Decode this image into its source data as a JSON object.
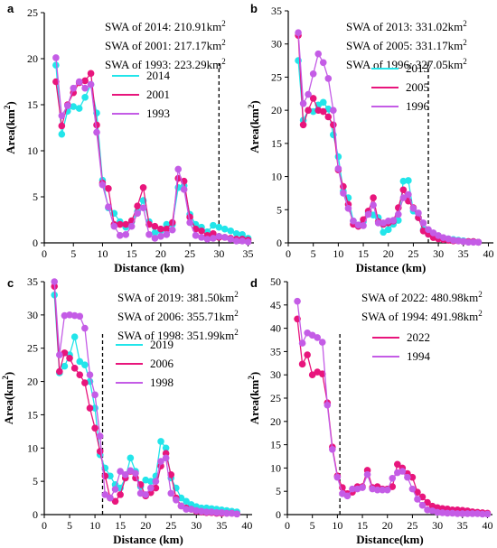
{
  "colors": {
    "c2014": "#22e5ea",
    "c2001": "#e8157c",
    "c1993": "#c45ce6"
  },
  "chart_data": [
    {
      "type": "line",
      "panel": "a",
      "xlabel": "Distance (km)",
      "ylabel": "Area(km",
      "ylabel_sup": "2",
      "ylabel_tail": ")",
      "xlim": [
        0,
        36
      ],
      "ylim": [
        0,
        25
      ],
      "xticks": [
        0,
        5,
        10,
        15,
        20,
        25,
        30,
        35
      ],
      "yticks": [
        0,
        5,
        10,
        15,
        20,
        25
      ],
      "cutoff_x": 30,
      "swa": [
        {
          "label": "SWA of 2014: 210.91km",
          "sup": "2"
        },
        {
          "label": "SWA of 2001: 217.17km",
          "sup": "2"
        },
        {
          "label": "SWA of 1993: 223.29km",
          "sup": "2"
        }
      ],
      "legend_pos": "upper-right",
      "series": [
        {
          "name": "2014",
          "colorKey": "c2014",
          "x": [
            2,
            3,
            4,
            5,
            6,
            7,
            8,
            9,
            10,
            11,
            12,
            13,
            14,
            15,
            16,
            17,
            18,
            19,
            20,
            21,
            22,
            23,
            24,
            25,
            26,
            27,
            28,
            29,
            30,
            31,
            32,
            33,
            34,
            35
          ],
          "values": [
            19.3,
            11.8,
            14.3,
            14.8,
            14.6,
            15.8,
            17.2,
            14.1,
            6.8,
            3.8,
            3.2,
            2.3,
            1.7,
            2.3,
            3.4,
            4.6,
            2.3,
            1.1,
            1.3,
            2.0,
            2.0,
            6.0,
            6.2,
            3.1,
            2.0,
            1.7,
            1.2,
            1.9,
            1.7,
            1.5,
            1.3,
            1.0,
            0.9,
            0.5
          ]
        },
        {
          "name": "2001",
          "colorKey": "c2001",
          "x": [
            2,
            3,
            4,
            5,
            6,
            7,
            8,
            9,
            10,
            11,
            12,
            13,
            14,
            15,
            16,
            17,
            18,
            19,
            20,
            21,
            22,
            23,
            24,
            25,
            26,
            27,
            28,
            29,
            30,
            31,
            32,
            33,
            34,
            35
          ],
          "values": [
            17.5,
            12.7,
            15.0,
            16.3,
            17.4,
            17.6,
            18.4,
            12.8,
            6.5,
            5.9,
            2.0,
            2.0,
            2.0,
            2.4,
            4.0,
            6.0,
            2.0,
            1.8,
            1.5,
            1.5,
            2.2,
            7.0,
            6.7,
            2.8,
            1.5,
            1.3,
            0.8,
            1.0,
            0.6,
            0.6,
            0.5,
            0.4,
            0.4,
            0.3
          ]
        },
        {
          "name": "1993",
          "colorKey": "c1993",
          "x": [
            2,
            3,
            4,
            5,
            6,
            7,
            8,
            9,
            10,
            11,
            12,
            13,
            14,
            15,
            16,
            17,
            18,
            19,
            20,
            21,
            22,
            23,
            24,
            25,
            26,
            27,
            28,
            29,
            30,
            31,
            32,
            33,
            34,
            35
          ],
          "values": [
            20.1,
            13.8,
            14.9,
            16.8,
            17.5,
            16.8,
            17.2,
            12.0,
            6.3,
            3.9,
            1.8,
            0.8,
            0.9,
            1.8,
            3.2,
            3.8,
            0.9,
            0.5,
            0.7,
            0.9,
            1.4,
            8.0,
            5.8,
            2.2,
            0.8,
            0.6,
            0.4,
            0.5,
            0.7,
            0.6,
            0.4,
            0.2,
            0.2,
            0.1
          ]
        }
      ]
    },
    {
      "type": "line",
      "panel": "b",
      "xlabel": "Distance (km)",
      "ylabel": "Area(km",
      "ylabel_sup": "2",
      "ylabel_tail": ")",
      "xlim": [
        0,
        41
      ],
      "ylim": [
        0,
        35
      ],
      "xticks": [
        0,
        5,
        10,
        15,
        20,
        25,
        30,
        35,
        40
      ],
      "yticks": [
        0,
        5,
        10,
        15,
        20,
        25,
        30,
        35
      ],
      "cutoff_x": 28,
      "swa": [
        {
          "label": "SWA of 2013: 331.02km",
          "sup": "2"
        },
        {
          "label": "SWA of 2005: 331.17km",
          "sup": "2"
        },
        {
          "label": "SWA of 1996: 327.05km",
          "sup": "2"
        }
      ],
      "legend_pos": "upper-right",
      "series": [
        {
          "name": "2013",
          "colorKey": "c2013",
          "x": [
            2,
            3,
            4,
            5,
            6,
            7,
            8,
            9,
            10,
            11,
            12,
            13,
            14,
            15,
            16,
            17,
            18,
            19,
            20,
            21,
            22,
            23,
            24,
            25,
            26,
            27,
            28,
            29,
            30,
            31,
            32,
            33,
            34,
            35,
            36,
            37,
            38
          ],
          "values": [
            27.5,
            18.5,
            20.0,
            19.8,
            20.8,
            21.2,
            20.2,
            16.3,
            13.0,
            7.8,
            6.8,
            3.3,
            2.6,
            3.2,
            4.6,
            4.2,
            3.8,
            1.6,
            2.0,
            2.8,
            3.4,
            9.3,
            9.4,
            4.8,
            3.8,
            2.0,
            1.3,
            1.0,
            0.8,
            0.7,
            0.6,
            0.5,
            0.4,
            0.3,
            0.2,
            0.2,
            0.1
          ]
        },
        {
          "name": "2005",
          "colorKey": "c2005",
          "x": [
            2,
            3,
            4,
            5,
            6,
            7,
            8,
            9,
            10,
            11,
            12,
            13,
            14,
            15,
            16,
            17,
            18,
            19,
            20,
            21,
            22,
            23,
            24,
            25,
            26,
            27,
            28,
            29,
            30,
            31,
            32,
            33,
            34,
            35,
            36,
            37,
            38
          ],
          "values": [
            31.3,
            17.8,
            20.0,
            21.8,
            20.0,
            19.8,
            19.0,
            17.8,
            11.0,
            8.5,
            5.8,
            2.8,
            2.5,
            3.5,
            4.8,
            6.8,
            3.2,
            2.8,
            3.0,
            3.3,
            5.3,
            8.0,
            6.3,
            5.3,
            3.8,
            1.8,
            1.3,
            0.8,
            0.6,
            0.5,
            0.4,
            0.3,
            0.3,
            0.2,
            0.2,
            0.2,
            0.1
          ]
        },
        {
          "name": "1996",
          "colorKey": "c1996",
          "x": [
            2,
            3,
            4,
            5,
            6,
            7,
            8,
            9,
            10,
            11,
            12,
            13,
            14,
            15,
            16,
            17,
            18,
            19,
            20,
            21,
            22,
            23,
            24,
            25,
            26,
            27,
            28,
            29,
            30,
            31,
            32,
            33,
            34,
            35,
            36,
            37,
            38
          ],
          "values": [
            31.7,
            21.0,
            22.4,
            25.5,
            28.5,
            27.2,
            24.8,
            20.0,
            11.2,
            7.5,
            5.2,
            3.3,
            2.7,
            2.6,
            4.3,
            5.7,
            3.0,
            3.0,
            3.3,
            3.4,
            4.3,
            6.8,
            7.3,
            5.2,
            4.5,
            3.0,
            2.0,
            1.5,
            1.1,
            0.8,
            0.6,
            0.4,
            0.3,
            0.2,
            0.1,
            0.1,
            0.1
          ]
        }
      ]
    },
    {
      "type": "line",
      "panel": "c",
      "xlabel": "Distance (km)",
      "ylabel": "Area(km",
      "ylabel_sup": "2",
      "ylabel_tail": ")",
      "xlim": [
        0,
        41
      ],
      "ylim": [
        0,
        35
      ],
      "xticks": [
        0,
        5,
        10,
        15,
        20,
        25,
        30,
        35,
        40
      ],
      "yticks": [
        0,
        5,
        10,
        15,
        20,
        25,
        30,
        35
      ],
      "cutoff_x": 11.5,
      "swa": [
        {
          "label": "SWA of 2019: 381.50km",
          "sup": "2"
        },
        {
          "label": "SWA of 2006: 355.71km",
          "sup": "2"
        },
        {
          "label": "SWA of 1998: 351.99km",
          "sup": "2"
        }
      ],
      "legend_pos": "right",
      "series": [
        {
          "name": "2019",
          "colorKey": "c2014",
          "x": [
            2,
            3,
            4,
            5,
            6,
            7,
            8,
            9,
            10,
            11,
            12,
            13,
            14,
            15,
            16,
            17,
            18,
            19,
            20,
            21,
            22,
            23,
            24,
            25,
            26,
            27,
            28,
            29,
            30,
            31,
            32,
            33,
            34,
            35,
            36,
            37,
            38
          ],
          "values": [
            33.0,
            21.3,
            22.3,
            24.0,
            26.7,
            23.0,
            22.5,
            20.0,
            16.0,
            9.0,
            7.0,
            5.8,
            4.5,
            4.0,
            5.5,
            8.5,
            6.5,
            4.2,
            5.2,
            5.0,
            5.8,
            11.0,
            10.0,
            5.5,
            4.0,
            2.5,
            2.0,
            1.5,
            1.2,
            1.0,
            1.0,
            0.9,
            0.8,
            0.7,
            0.6,
            0.5,
            0.4
          ]
        },
        {
          "name": "2006",
          "colorKey": "c2001",
          "x": [
            2,
            3,
            4,
            5,
            6,
            7,
            8,
            9,
            10,
            11,
            12,
            13,
            14,
            15,
            16,
            17,
            18,
            19,
            20,
            21,
            22,
            23,
            24,
            25,
            26,
            27,
            28,
            29,
            30,
            31,
            32,
            33,
            34,
            35,
            36,
            37,
            38
          ],
          "values": [
            34.3,
            21.5,
            24.3,
            23.5,
            22.0,
            21.0,
            19.8,
            16.0,
            13.0,
            9.5,
            5.8,
            2.5,
            2.0,
            3.0,
            5.5,
            6.5,
            5.5,
            4.5,
            2.8,
            3.3,
            4.0,
            7.3,
            9.2,
            6.0,
            2.5,
            1.3,
            1.0,
            0.8,
            0.5,
            0.4,
            0.3,
            0.3,
            0.2,
            0.2,
            0.2,
            0.2,
            0.1
          ]
        },
        {
          "name": "1998",
          "colorKey": "c1993",
          "x": [
            2,
            3,
            4,
            5,
            6,
            7,
            8,
            9,
            10,
            11,
            12,
            13,
            14,
            15,
            16,
            17,
            18,
            19,
            20,
            21,
            22,
            23,
            24,
            25,
            26,
            27,
            28,
            29,
            30,
            31,
            32,
            33,
            34,
            35,
            36,
            37,
            38
          ],
          "values": [
            35.0,
            24.0,
            29.9,
            30.0,
            29.9,
            29.8,
            28.0,
            21.0,
            18.0,
            11.8,
            3.0,
            2.5,
            3.8,
            6.5,
            6.0,
            6.6,
            6.2,
            3.2,
            3.0,
            4.0,
            5.0,
            8.0,
            8.5,
            3.2,
            2.2,
            1.3,
            0.8,
            0.8,
            0.6,
            0.5,
            0.4,
            0.4,
            0.3,
            0.3,
            0.2,
            0.2,
            0.1
          ]
        }
      ]
    },
    {
      "type": "line",
      "panel": "d",
      "xlabel": "Distance(km)",
      "ylabel": "Area(km",
      "ylabel_sup": "2",
      "ylabel_tail": ")",
      "xlim": [
        0,
        41
      ],
      "ylim": [
        0,
        50
      ],
      "xticks": [
        0,
        5,
        10,
        15,
        20,
        25,
        30,
        35,
        40
      ],
      "yticks": [
        0,
        5,
        10,
        15,
        20,
        25,
        30,
        35,
        40,
        45,
        50
      ],
      "cutoff_x": 10.5,
      "swa": [
        {
          "label": "SWA of 2022: 480.98km",
          "sup": "2"
        },
        {
          "label": "SWA of 1994: 491.98km",
          "sup": "2"
        }
      ],
      "legend_pos": "right",
      "series": [
        {
          "name": "2022",
          "colorKey": "c2001",
          "x": [
            2,
            3,
            4,
            5,
            6,
            7,
            8,
            9,
            10,
            11,
            12,
            13,
            14,
            15,
            16,
            17,
            18,
            19,
            20,
            21,
            22,
            23,
            24,
            25,
            26,
            27,
            28,
            29,
            30,
            31,
            32,
            33,
            34,
            35,
            36,
            37,
            38,
            39,
            40
          ],
          "values": [
            42.0,
            32.3,
            34.3,
            30.0,
            30.6,
            30.2,
            24.0,
            14.5,
            8.3,
            5.8,
            4.5,
            4.8,
            6.0,
            6.0,
            9.5,
            5.8,
            6.0,
            5.5,
            5.5,
            6.0,
            10.8,
            10.0,
            8.8,
            8.0,
            4.8,
            3.8,
            2.6,
            1.8,
            1.5,
            1.3,
            1.2,
            1.0,
            1.0,
            0.9,
            0.8,
            0.6,
            0.5,
            0.4,
            0.3
          ]
        },
        {
          "name": "1994",
          "colorKey": "c1993",
          "x": [
            2,
            3,
            4,
            5,
            6,
            7,
            8,
            9,
            10,
            11,
            12,
            13,
            14,
            15,
            16,
            17,
            18,
            19,
            20,
            21,
            22,
            23,
            24,
            25,
            26,
            27,
            28,
            29,
            30,
            31,
            32,
            33,
            34,
            35,
            36,
            37,
            38,
            39,
            40
          ],
          "values": [
            45.8,
            36.8,
            39.0,
            38.5,
            38.0,
            37.0,
            23.5,
            14.0,
            8.0,
            4.5,
            4.0,
            5.5,
            5.5,
            5.8,
            8.6,
            5.5,
            5.3,
            5.3,
            5.3,
            7.8,
            9.0,
            9.3,
            8.0,
            5.5,
            3.3,
            2.0,
            1.0,
            0.8,
            0.5,
            0.4,
            0.3,
            0.3,
            0.2,
            0.2,
            0.2,
            0.2,
            0.2,
            0.1,
            0.1
          ]
        }
      ]
    }
  ]
}
